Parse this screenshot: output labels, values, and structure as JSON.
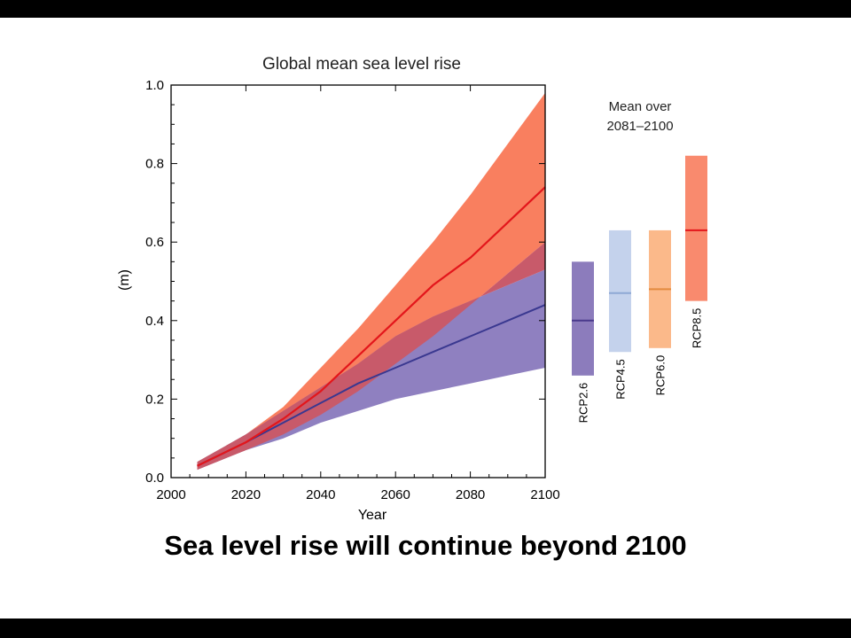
{
  "caption": "Sea level rise will continue beyond 2100",
  "colors": {
    "low_band": "#8f80c0",
    "low_line": "#3a3890",
    "high_band": "#f97f5f",
    "high_line": "#e3161b",
    "overlap": "#c85a6a",
    "rcp26": "#8c7cbc",
    "rcp26_line": "#4a3a8c",
    "rcp45": "#c4d2ec",
    "rcp45_line": "#8ea8d4",
    "rcp60": "#fbb98a",
    "rcp60_line": "#e38a3e",
    "rcp85": "#f98a6e",
    "rcp85_line": "#e3161b"
  },
  "chart_data": [
    {
      "type": "area",
      "title": "Global mean sea level rise",
      "xlabel": "Year",
      "ylabel": "(m)",
      "xlim": [
        2000,
        2100
      ],
      "ylim": [
        0,
        1.0
      ],
      "x_ticks": [
        "2000",
        "2020",
        "2040",
        "2060",
        "2080",
        "2100"
      ],
      "y_ticks": [
        "0.0",
        "0.2",
        "0.4",
        "0.6",
        "0.8",
        "1.0"
      ],
      "grid": false,
      "x": [
        2007,
        2020,
        2030,
        2040,
        2050,
        2060,
        2070,
        2080,
        2090,
        2100
      ],
      "series": [
        {
          "scenario": "RCP2.6",
          "mean": [
            0.03,
            0.09,
            0.14,
            0.19,
            0.24,
            0.28,
            0.32,
            0.36,
            0.4,
            0.44
          ],
          "low": [
            0.02,
            0.07,
            0.1,
            0.14,
            0.17,
            0.2,
            0.22,
            0.24,
            0.26,
            0.28
          ],
          "high": [
            0.04,
            0.11,
            0.17,
            0.23,
            0.29,
            0.36,
            0.41,
            0.45,
            0.49,
            0.53
          ]
        },
        {
          "scenario": "RCP8.5",
          "mean": [
            0.03,
            0.09,
            0.15,
            0.22,
            0.31,
            0.4,
            0.49,
            0.56,
            0.65,
            0.74
          ],
          "low": [
            0.02,
            0.07,
            0.11,
            0.16,
            0.22,
            0.29,
            0.36,
            0.44,
            0.52,
            0.6
          ],
          "high": [
            0.04,
            0.11,
            0.18,
            0.28,
            0.38,
            0.49,
            0.6,
            0.72,
            0.85,
            0.98
          ]
        }
      ]
    },
    {
      "type": "bar",
      "title": "Mean over 2081–2100",
      "categories": [
        "RCP2.6",
        "RCP4.5",
        "RCP6.0",
        "RCP8.5"
      ],
      "mean": [
        0.4,
        0.47,
        0.48,
        0.63
      ],
      "low": [
        0.26,
        0.32,
        0.33,
        0.45
      ],
      "high": [
        0.55,
        0.63,
        0.63,
        0.82
      ]
    }
  ]
}
